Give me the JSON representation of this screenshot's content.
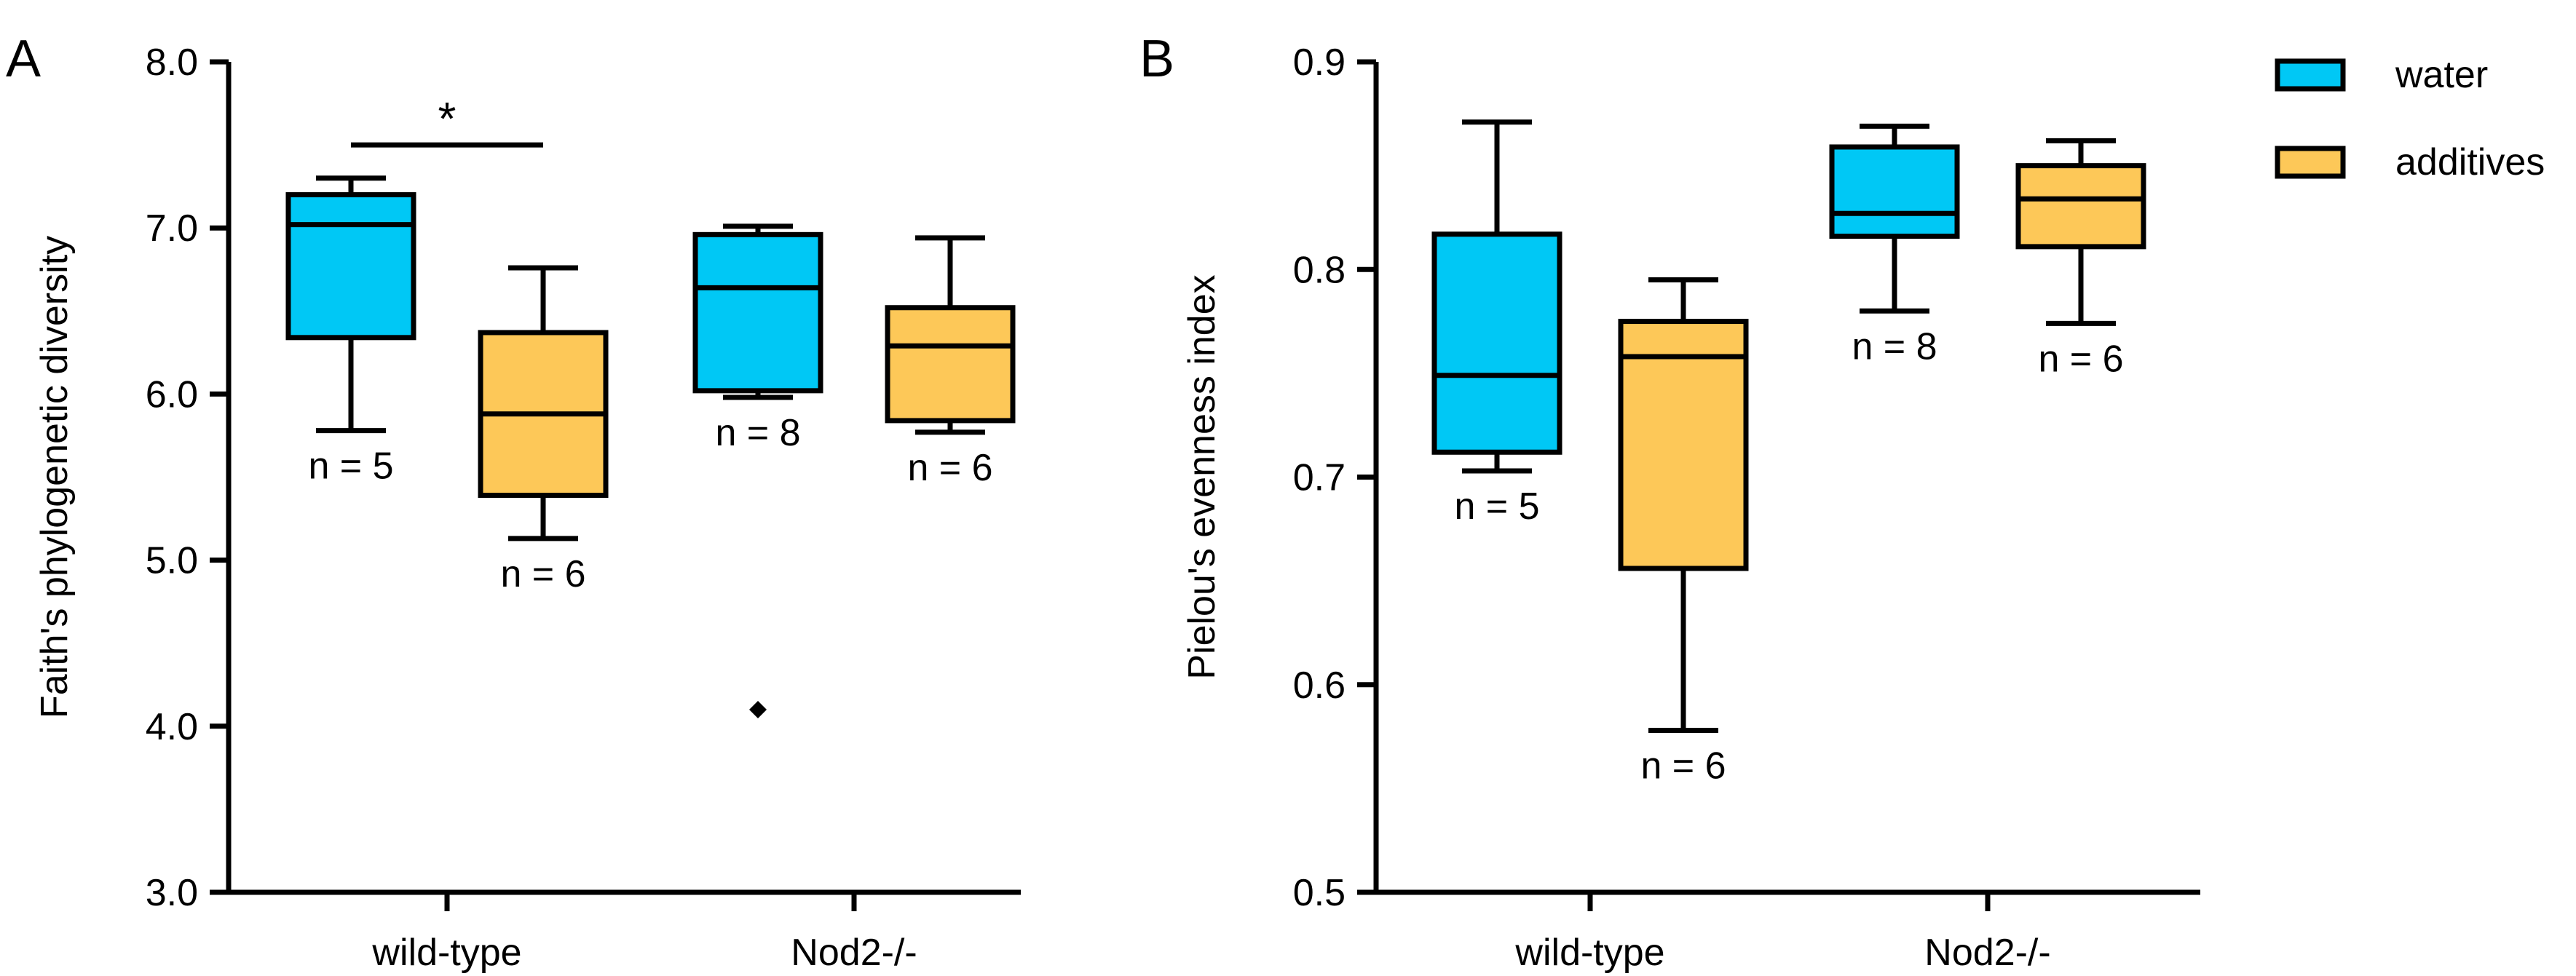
{
  "colors": {
    "water": "#00c8f5",
    "additives": "#fdc858",
    "stroke": "#000000"
  },
  "legend": {
    "items": [
      {
        "key": "water",
        "label": "water"
      },
      {
        "key": "additives",
        "label": "additives"
      }
    ]
  },
  "chart_data": [
    {
      "type": "box",
      "panel_label": "A",
      "title": "",
      "xlabel": "",
      "ylabel": "Faith's phylogenetic diversity",
      "ylim": [
        3.0,
        8.0
      ],
      "yticks": [
        3.0,
        4.0,
        5.0,
        6.0,
        7.0,
        8.0
      ],
      "tick_decimals": 1,
      "categories": [
        "wild-type",
        "Nod2-/-"
      ],
      "series": [
        {
          "name": "water",
          "boxes": [
            {
              "category": "wild-type",
              "min": 5.78,
              "q1": 6.34,
              "median": 7.02,
              "q3": 7.2,
              "max": 7.3,
              "n_label": "n = 5",
              "outliers": []
            },
            {
              "category": "Nod2-/-",
              "min": 5.98,
              "q1": 6.02,
              "median": 6.64,
              "q3": 6.96,
              "max": 7.01,
              "n_label": "n = 8",
              "outliers": [
                4.1
              ]
            }
          ]
        },
        {
          "name": "additives",
          "boxes": [
            {
              "category": "wild-type",
              "min": 5.13,
              "q1": 5.39,
              "median": 5.88,
              "q3": 6.37,
              "max": 6.76,
              "n_label": "n = 6",
              "outliers": []
            },
            {
              "category": "Nod2-/-",
              "min": 5.77,
              "q1": 5.84,
              "median": 6.29,
              "q3": 6.52,
              "max": 6.94,
              "n_label": "n = 6",
              "outliers": []
            }
          ]
        }
      ],
      "significance": [
        {
          "category": "wild-type",
          "from": "water",
          "to": "additives",
          "y": 7.5,
          "label": "*"
        }
      ]
    },
    {
      "type": "box",
      "panel_label": "B",
      "title": "",
      "xlabel": "",
      "ylabel": "Pielou's evenness index",
      "ylim": [
        0.5,
        0.9
      ],
      "yticks": [
        0.5,
        0.6,
        0.7,
        0.8,
        0.9
      ],
      "tick_decimals": 1,
      "categories": [
        "wild-type",
        "Nod2-/-"
      ],
      "series": [
        {
          "name": "water",
          "boxes": [
            {
              "category": "wild-type",
              "min": 0.703,
              "q1": 0.712,
              "median": 0.749,
              "q3": 0.817,
              "max": 0.871,
              "n_label": "n = 5",
              "outliers": []
            },
            {
              "category": "Nod2-/-",
              "min": 0.78,
              "q1": 0.816,
              "median": 0.827,
              "q3": 0.859,
              "max": 0.869,
              "n_label": "n = 8",
              "outliers": []
            }
          ]
        },
        {
          "name": "additives",
          "boxes": [
            {
              "category": "wild-type",
              "min": 0.578,
              "q1": 0.656,
              "median": 0.758,
              "q3": 0.775,
              "max": 0.795,
              "n_label": "n = 6",
              "outliers": []
            },
            {
              "category": "Nod2-/-",
              "min": 0.774,
              "q1": 0.811,
              "median": 0.834,
              "q3": 0.85,
              "max": 0.862,
              "n_label": "n = 6",
              "outliers": []
            }
          ]
        }
      ],
      "significance": []
    }
  ]
}
